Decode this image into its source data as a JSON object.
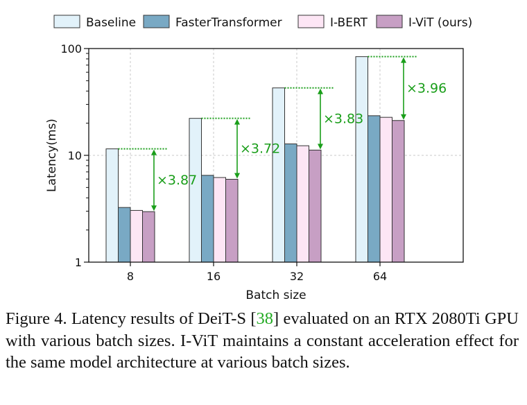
{
  "chart_data": {
    "type": "bar",
    "scale": "log",
    "ylabel": "Latency(ms)",
    "xlabel": "Batch size",
    "ylim": [
      1,
      100
    ],
    "yticks": [
      {
        "value": 1,
        "label": "1"
      },
      {
        "value": 10,
        "label": "10"
      },
      {
        "value": 100,
        "label": "100"
      }
    ],
    "categories": [
      "8",
      "16",
      "32",
      "64"
    ],
    "series": [
      {
        "name": "Baseline",
        "color": "#e2f2fa",
        "values": [
          11.5,
          22.2,
          42.8,
          84.0
        ]
      },
      {
        "name": "FasterTransformer",
        "color": "#79a9c4",
        "values": [
          3.25,
          6.5,
          12.8,
          23.5
        ]
      },
      {
        "name": "I-BERT",
        "color": "#fde6f5",
        "values": [
          3.05,
          6.2,
          12.3,
          22.7
        ]
      },
      {
        "name": "I-ViT (ours)",
        "color": "#c79fc4",
        "values": [
          2.97,
          5.97,
          11.2,
          21.2
        ]
      }
    ],
    "annotations": [
      {
        "category": "8",
        "label": "×3.87"
      },
      {
        "category": "16",
        "label": "×3.72"
      },
      {
        "category": "32",
        "label": "×3.83"
      },
      {
        "category": "64",
        "label": "×3.96"
      }
    ],
    "annotation_color": "#1a9e1a",
    "grid": true,
    "legend_position": "top"
  },
  "caption": {
    "prefix": "Figure 4. Latency results of DeiT-S [",
    "ref": "38",
    "suffix": "] evaluated on an RTX 2080Ti GPU with various batch sizes. I-ViT maintains a constant acceleration effect for the same model architecture at various batch sizes."
  }
}
